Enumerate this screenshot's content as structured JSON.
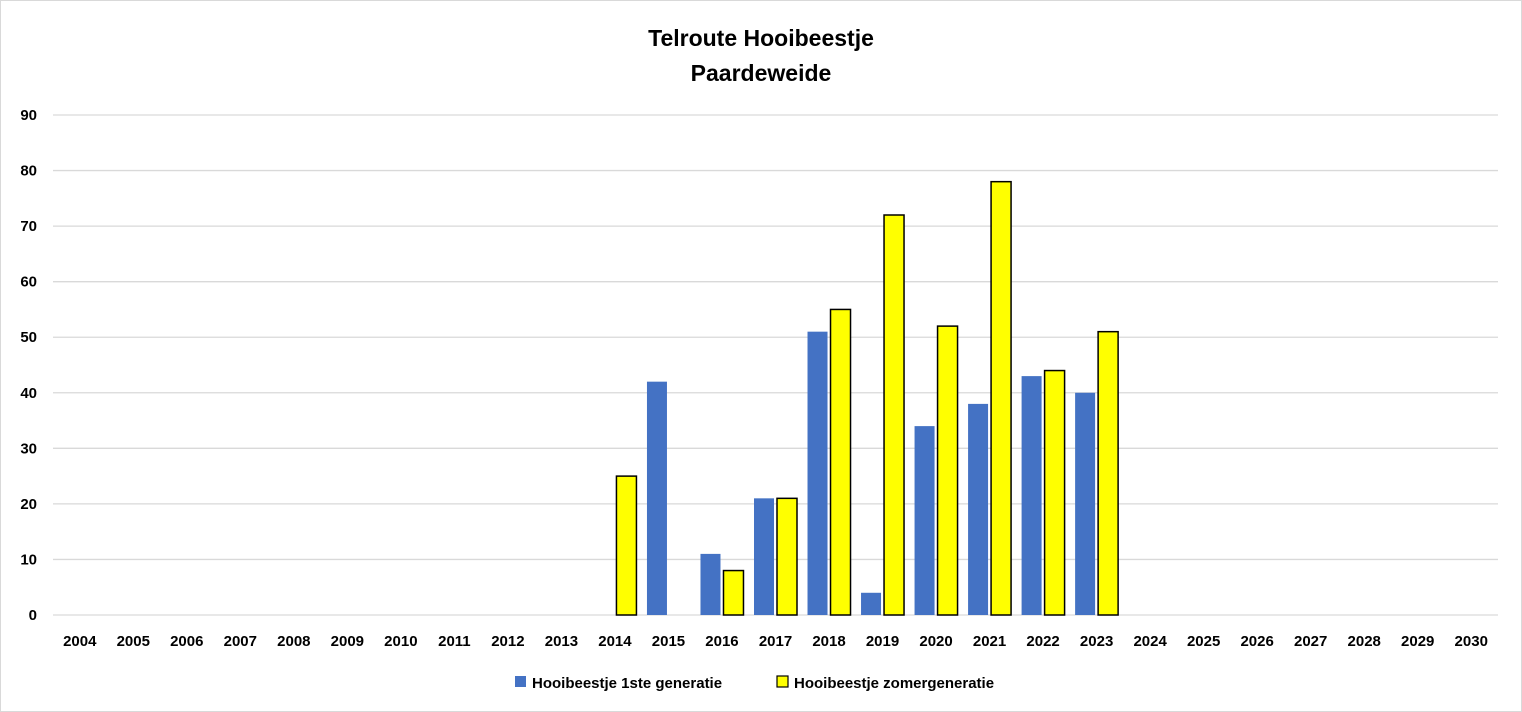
{
  "chart_data": {
    "type": "bar",
    "title": [
      "Telroute Hooibeestje",
      "Paardeweide"
    ],
    "xlabel": "",
    "ylabel": "",
    "ylim": [
      0,
      90
    ],
    "yticks": [
      0,
      10,
      20,
      30,
      40,
      50,
      60,
      70,
      80,
      90
    ],
    "grid": true,
    "legend_position": "bottom",
    "categories": [
      "2004",
      "2005",
      "2006",
      "2007",
      "2008",
      "2009",
      "2010",
      "2011",
      "2012",
      "2013",
      "2014",
      "2015",
      "2016",
      "2017",
      "2018",
      "2019",
      "2020",
      "2021",
      "2022",
      "2023",
      "2024",
      "2025",
      "2026",
      "2027",
      "2028",
      "2029",
      "2030"
    ],
    "series": [
      {
        "name": "Hooibeestje 1ste generatie",
        "color": "#4472C4",
        "outline": "none",
        "values": [
          null,
          null,
          null,
          null,
          null,
          null,
          null,
          null,
          null,
          null,
          null,
          42,
          11,
          21,
          51,
          4,
          34,
          38,
          43,
          40,
          null,
          null,
          null,
          null,
          null,
          null,
          null
        ]
      },
      {
        "name": "Hooibeestje zomergeneratie",
        "color": "#FFFF00",
        "outline": "#000000",
        "values": [
          null,
          null,
          null,
          null,
          null,
          null,
          null,
          null,
          null,
          null,
          25,
          null,
          8,
          21,
          55,
          72,
          52,
          78,
          44,
          51,
          null,
          null,
          null,
          null,
          null,
          null,
          null
        ]
      }
    ]
  }
}
